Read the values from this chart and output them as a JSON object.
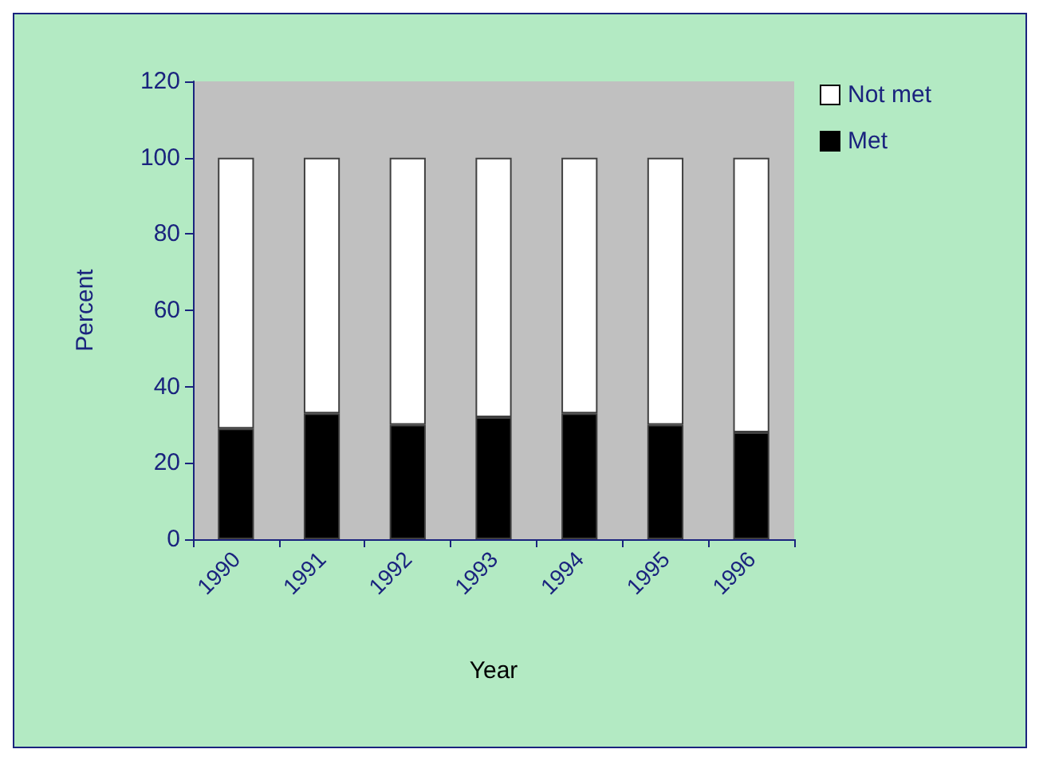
{
  "chart_data": {
    "type": "bar",
    "stacked": true,
    "xlabel": "Year",
    "ylabel": "Percent",
    "categories": [
      "1990",
      "1991",
      "1992",
      "1993",
      "1994",
      "1995",
      "1996"
    ],
    "series": [
      {
        "name": "Met",
        "color": "#000000",
        "values": [
          29,
          33,
          30,
          32,
          33,
          30,
          28
        ]
      },
      {
        "name": "Not met",
        "color": "#ffffff",
        "values": [
          71,
          67,
          70,
          68,
          67,
          70,
          72
        ]
      }
    ],
    "ylim": [
      0,
      120
    ],
    "yticks": [
      0,
      20,
      40,
      60,
      80,
      100,
      120
    ],
    "grid": false,
    "legend": "top right"
  }
}
